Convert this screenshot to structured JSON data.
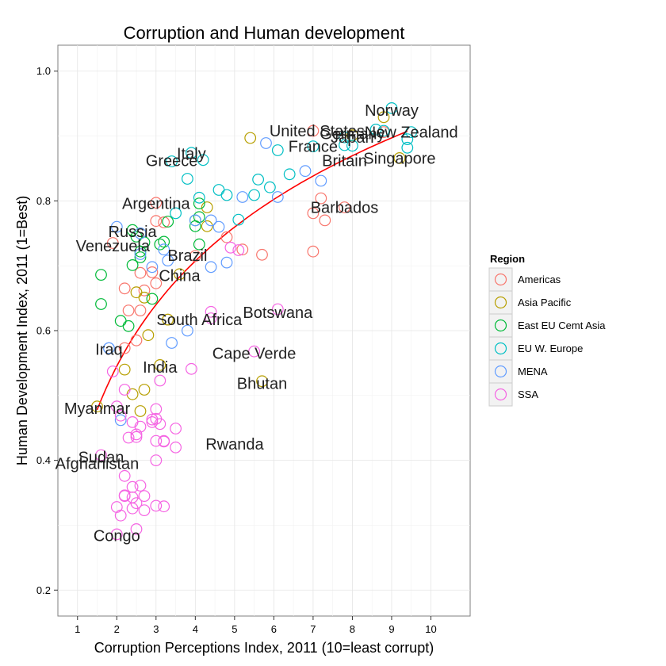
{
  "chart_data": {
    "type": "scatter",
    "title": "Corruption and Human development",
    "xlabel": "Corruption Perceptions Index, 2011 (10=least corrupt)",
    "ylabel": "Human Development Index, 2011 (1=Best)",
    "xlim": [
      0.5,
      11.0
    ],
    "ylim": [
      0.16,
      1.04
    ],
    "x_ticks": [
      1,
      2,
      3,
      4,
      5,
      6,
      7,
      8,
      9,
      10
    ],
    "y_ticks": [
      0.2,
      0.4,
      0.6,
      0.8,
      1.0
    ],
    "x_tick_labels": [
      "1",
      "2",
      "3",
      "4",
      "5",
      "6",
      "7",
      "8",
      "9",
      "10"
    ],
    "y_tick_labels": [
      "0.2",
      "0.4",
      "0.6",
      "0.8",
      "1.0"
    ],
    "grid": true,
    "legend": {
      "title": "Region",
      "position": "right",
      "entries": [
        "Americas",
        "Asia Pacific",
        "East EU Cemt Asia",
        "EU W. Europe",
        "MENA",
        "SSA"
      ]
    },
    "colors": {
      "Americas": "#F8766D",
      "Asia Pacific": "#B79F00",
      "East EU Cemt Asia": "#00BA38",
      "EU W. Europe": "#00BFC4",
      "MENA": "#619CFF",
      "SSA": "#F564E3",
      "trend": "#FF0000",
      "panel_bg": "#FFFFFF",
      "grid": "#EBEBEB"
    },
    "trend_line": {
      "type": "log",
      "x_from": 1.5,
      "x_to": 9.4,
      "a": 0.383,
      "b": 0.234
    },
    "labels": [
      {
        "text": "Norway",
        "x": 9.0,
        "y": 0.94
      },
      {
        "text": "United States",
        "x": 7.1,
        "y": 0.908
      },
      {
        "text": "Germany",
        "x": 8.0,
        "y": 0.904
      },
      {
        "text": "Japan",
        "x": 8.0,
        "y": 0.898
      },
      {
        "text": "New Zealand",
        "x": 9.5,
        "y": 0.906
      },
      {
        "text": "France",
        "x": 7.0,
        "y": 0.884
      },
      {
        "text": "Italy",
        "x": 3.9,
        "y": 0.873
      },
      {
        "text": "Singapore",
        "x": 9.2,
        "y": 0.866
      },
      {
        "text": "Britain",
        "x": 7.8,
        "y": 0.862
      },
      {
        "text": "Greece",
        "x": 3.4,
        "y": 0.862
      },
      {
        "text": "Argentina",
        "x": 3.0,
        "y": 0.796
      },
      {
        "text": "Barbados",
        "x": 7.8,
        "y": 0.79
      },
      {
        "text": "Russia",
        "x": 2.4,
        "y": 0.753
      },
      {
        "text": "Venezuela",
        "x": 1.9,
        "y": 0.731
      },
      {
        "text": "Brazil",
        "x": 3.8,
        "y": 0.716
      },
      {
        "text": "China",
        "x": 3.6,
        "y": 0.685
      },
      {
        "text": "Botswana",
        "x": 6.1,
        "y": 0.628
      },
      {
        "text": "South Africa",
        "x": 4.1,
        "y": 0.617
      },
      {
        "text": "Cape Verde",
        "x": 5.5,
        "y": 0.565
      },
      {
        "text": "Iraq",
        "x": 1.8,
        "y": 0.571
      },
      {
        "text": "India",
        "x": 3.1,
        "y": 0.544
      },
      {
        "text": "Bhutan",
        "x": 5.7,
        "y": 0.519
      },
      {
        "text": "Myanmar",
        "x": 1.5,
        "y": 0.48
      },
      {
        "text": "Rwanda",
        "x": 5.0,
        "y": 0.425
      },
      {
        "text": "Sudan",
        "x": 1.6,
        "y": 0.405
      },
      {
        "text": "Afghanistan",
        "x": 1.5,
        "y": 0.395
      },
      {
        "text": "Congo",
        "x": 2.0,
        "y": 0.284
      }
    ],
    "series": [
      {
        "name": "Americas",
        "x": [
          3.0,
          2.2,
          2.6,
          3.2,
          3.0,
          2.7,
          2.6,
          2.9,
          3.0,
          2.5,
          4.0,
          5.7,
          5.2,
          7.0,
          7.2,
          7.0,
          7.3,
          7.8,
          7.0,
          8.8,
          2.3,
          2.2,
          1.9,
          4.8
        ],
        "y": [
          0.797,
          0.665,
          0.689,
          0.767,
          0.769,
          0.662,
          0.631,
          0.69,
          0.673,
          0.585,
          0.715,
          0.717,
          0.725,
          0.908,
          0.804,
          0.781,
          0.77,
          0.79,
          0.722,
          0.906,
          0.631,
          0.573,
          0.735,
          0.744
        ]
      },
      {
        "name": "Asia Pacific",
        "x": [
          3.6,
          2.4,
          3.1,
          2.7,
          2.6,
          1.5,
          2.2,
          5.7,
          3.3,
          2.5,
          2.7,
          8.8,
          9.2,
          8.0,
          5.4,
          3.3,
          4.3,
          2.8,
          4.3
        ],
        "y": [
          0.687,
          0.502,
          0.547,
          0.509,
          0.476,
          0.483,
          0.54,
          0.522,
          0.617,
          0.659,
          0.651,
          0.929,
          0.866,
          0.901,
          0.897,
          0.617,
          0.761,
          0.593,
          0.79
        ]
      },
      {
        "name": "East EU Cemt Asia",
        "x": [
          2.4,
          2.5,
          2.6,
          2.7,
          3.1,
          3.3,
          4.0,
          4.1,
          4.1,
          2.4,
          1.6,
          1.6,
          2.9,
          2.1,
          2.3,
          2.6,
          3.2,
          4.0,
          4.1
        ],
        "y": [
          0.755,
          0.745,
          0.713,
          0.736,
          0.733,
          0.768,
          0.77,
          0.733,
          0.796,
          0.701,
          0.686,
          0.641,
          0.649,
          0.615,
          0.607,
          0.722,
          0.737,
          0.761,
          0.775
        ]
      },
      {
        "name": "EU W. Europe",
        "x": [
          9.0,
          9.4,
          9.4,
          8.8,
          9.5,
          8.0,
          7.8,
          8.6,
          7.0,
          7.8,
          6.1,
          4.2,
          3.9,
          3.4,
          3.8,
          6.4,
          5.9,
          5.6,
          5.5,
          4.6,
          4.1,
          5.1,
          3.5,
          4.8
        ],
        "y": [
          0.943,
          0.895,
          0.882,
          0.908,
          0.906,
          0.885,
          0.898,
          0.91,
          0.884,
          0.886,
          0.878,
          0.863,
          0.874,
          0.861,
          0.834,
          0.841,
          0.821,
          0.833,
          0.809,
          0.817,
          0.805,
          0.771,
          0.781,
          0.809
        ]
      },
      {
        "name": "MENA",
        "x": [
          1.8,
          2.9,
          2.6,
          3.3,
          3.4,
          4.4,
          4.0,
          4.6,
          4.8,
          5.8,
          7.2,
          6.8,
          5.2,
          3.2,
          2.1,
          3.8,
          4.4,
          6.1,
          1.8,
          2.0,
          2.6
        ],
        "y": [
          0.573,
          0.698,
          0.718,
          0.708,
          0.581,
          0.698,
          0.77,
          0.76,
          0.705,
          0.889,
          0.831,
          0.846,
          0.806,
          0.725,
          0.462,
          0.6,
          0.77,
          0.806,
          0.573,
          0.76,
          0.75
        ]
      },
      {
        "name": "SSA",
        "x": [
          2.0,
          1.6,
          2.4,
          2.2,
          2.6,
          2.4,
          2.5,
          2.4,
          2.5,
          2.6,
          2.9,
          3.0,
          3.0,
          3.1,
          3.2,
          3.0,
          3.2,
          3.5,
          3.5,
          3.9,
          4.4,
          4.4,
          4.9,
          5.1,
          5.5,
          6.1,
          3.0,
          2.7,
          2.2,
          2.2,
          2.4,
          2.0,
          2.1,
          2.5,
          2.7,
          2.2,
          3.0,
          3.2,
          1.9,
          2.0,
          2.5,
          2.9,
          3.1,
          2.1,
          2.3
        ],
        "y": [
          0.286,
          0.408,
          0.359,
          0.376,
          0.361,
          0.343,
          0.334,
          0.459,
          0.436,
          0.452,
          0.463,
          0.464,
          0.479,
          0.523,
          0.43,
          0.43,
          0.429,
          0.449,
          0.42,
          0.541,
          0.619,
          0.629,
          0.728,
          0.724,
          0.568,
          0.633,
          0.33,
          0.345,
          0.345,
          0.346,
          0.326,
          0.328,
          0.315,
          0.294,
          0.323,
          0.509,
          0.4,
          0.329,
          0.537,
          0.483,
          0.44,
          0.459,
          0.456,
          0.469,
          0.435
        ]
      }
    ]
  }
}
